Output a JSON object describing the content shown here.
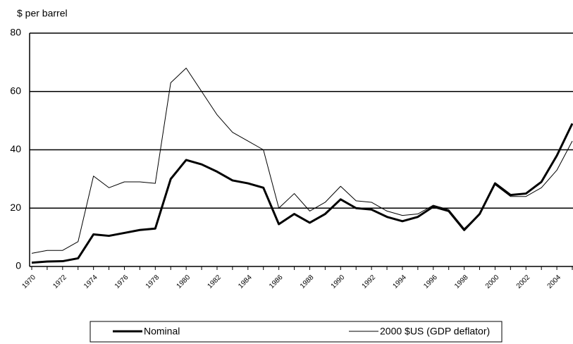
{
  "chart_data": {
    "type": "line",
    "y_label": "$ per barrel",
    "categories": [
      "1970",
      null,
      "1972",
      null,
      "1974",
      null,
      "1976",
      null,
      "1978",
      null,
      "1980",
      null,
      "1982",
      null,
      "1984",
      null,
      "1986",
      null,
      "1988",
      null,
      "1990",
      null,
      "1992",
      null,
      "1994",
      null,
      "1996",
      null,
      "1998",
      null,
      "2000",
      null,
      "2002",
      null,
      "2004",
      null
    ],
    "series": [
      {
        "name": "Nominal",
        "color": "#000000",
        "width": 3,
        "values": [
          1.3,
          1.7,
          1.8,
          2.8,
          11,
          10.5,
          11.5,
          12.5,
          13,
          30,
          36.5,
          35,
          32.5,
          29.5,
          28.5,
          27,
          14.5,
          18,
          15,
          18,
          23,
          20,
          19.5,
          17,
          15.5,
          17,
          20.5,
          19,
          12.5,
          18,
          28.5,
          24.5,
          25,
          29,
          38,
          49
        ]
      },
      {
        "name": "2000 $US (GDP deflator)",
        "color": "#000000",
        "width": 1,
        "values": [
          4.5,
          5.5,
          5.5,
          8.5,
          31,
          27,
          29,
          29,
          28.5,
          63,
          68,
          60,
          52,
          46,
          43,
          40,
          20,
          25,
          19,
          22,
          27.5,
          22.5,
          22,
          19,
          17.5,
          18,
          21,
          19.5,
          13,
          18,
          28,
          24,
          24,
          27,
          33,
          43
        ]
      }
    ],
    "ylim": [
      0,
      80
    ],
    "yticks": [
      0,
      20,
      40,
      60,
      80
    ],
    "grid": true
  }
}
